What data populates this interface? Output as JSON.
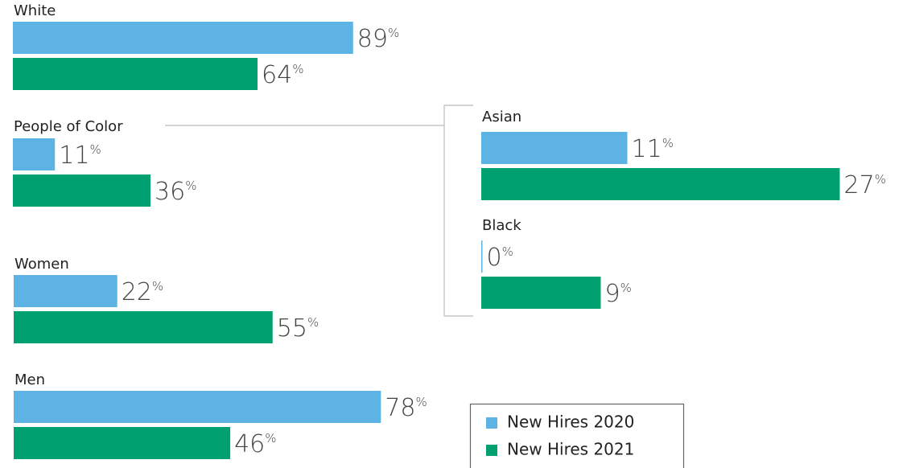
{
  "chart_data": {
    "type": "bar",
    "orientation": "horizontal",
    "categories": [
      "White",
      "People of Color",
      "Women",
      "Men",
      "Asian",
      "Black"
    ],
    "series": [
      {
        "name": "New Hires 2020",
        "color": "#5db3e4",
        "values": [
          89,
          11,
          22,
          78,
          11,
          0
        ],
        "value_labels": [
          "89%",
          "11%",
          "22%",
          "78%",
          "11%",
          "0%"
        ]
      },
      {
        "name": "New Hires 2021",
        "color": "#00a070",
        "values": [
          64,
          36,
          55,
          46,
          27,
          9
        ],
        "value_labels": [
          "64%",
          "36%",
          "55%",
          "46%",
          "27%",
          "9%"
        ]
      }
    ]
  }
}
